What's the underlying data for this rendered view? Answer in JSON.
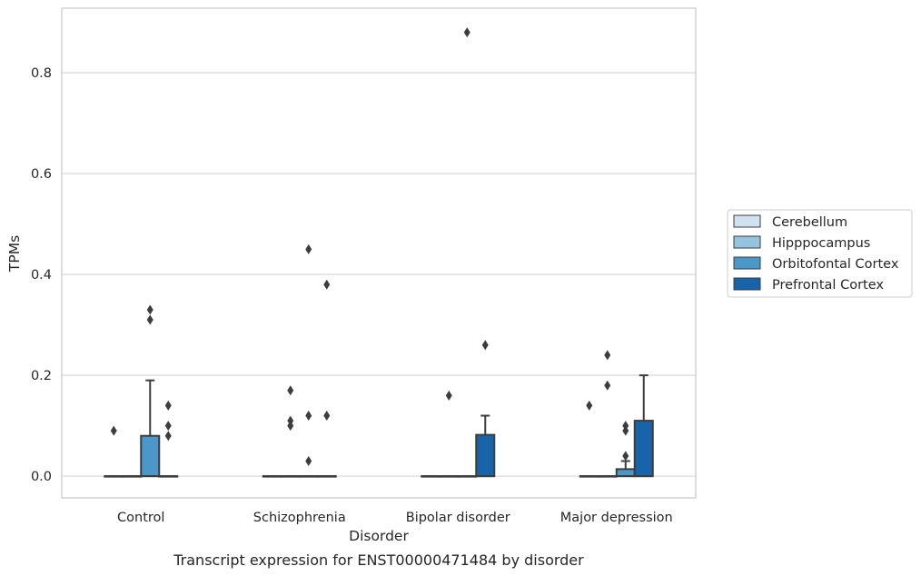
{
  "chart_data": {
    "type": "box",
    "xlabel": "Disorder",
    "ylabel": "TPMs",
    "caption": "Transcript expression for ENST00000471484 by disorder",
    "categories": [
      "Control",
      "Schizophrenia",
      "Bipolar disorder",
      "Major depression"
    ],
    "ylim": [
      -0.043,
      0.928
    ],
    "yticks": [
      0.0,
      0.2,
      0.4,
      0.6,
      0.8
    ],
    "ytick_labels": [
      "0.0",
      "0.2",
      "0.4",
      "0.6",
      "0.8"
    ],
    "grid": true,
    "legend_position": "right",
    "series": [
      {
        "name": "Cerebellum",
        "color": "#d0e1f2",
        "boxes": [
          {
            "q1": 0,
            "median": 0,
            "q3": 0,
            "whisker_low": 0,
            "whisker_high": 0,
            "outliers": [
              0.09
            ]
          },
          {
            "q1": 0,
            "median": 0,
            "q3": 0,
            "whisker_low": 0,
            "whisker_high": 0,
            "outliers": []
          },
          {
            "q1": 0,
            "median": 0,
            "q3": 0,
            "whisker_low": 0,
            "whisker_high": 0,
            "outliers": []
          },
          {
            "q1": 0,
            "median": 0,
            "q3": 0,
            "whisker_low": 0,
            "whisker_high": 0,
            "outliers": [
              0.14
            ]
          }
        ]
      },
      {
        "name": "Hipppocampus",
        "color": "#94c4df",
        "boxes": [
          {
            "q1": 0,
            "median": 0,
            "q3": 0,
            "whisker_low": 0,
            "whisker_high": 0,
            "outliers": []
          },
          {
            "q1": 0,
            "median": 0,
            "q3": 0,
            "whisker_low": 0,
            "whisker_high": 0,
            "outliers": [
              0.11,
              0.1,
              0.17
            ]
          },
          {
            "q1": 0,
            "median": 0,
            "q3": 0,
            "whisker_low": 0,
            "whisker_high": 0,
            "outliers": [
              0.16
            ]
          },
          {
            "q1": 0,
            "median": 0,
            "q3": 0,
            "whisker_low": 0,
            "whisker_high": 0,
            "outliers": [
              0.18,
              0.24
            ]
          }
        ]
      },
      {
        "name": "Orbitofontal Cortex",
        "color": "#4a98c9",
        "boxes": [
          {
            "q1": 0,
            "median": 0,
            "q3": 0.08,
            "whisker_low": 0,
            "whisker_high": 0.19,
            "outliers": [
              0.31,
              0.33
            ]
          },
          {
            "q1": 0,
            "median": 0,
            "q3": 0,
            "whisker_low": 0,
            "whisker_high": 0,
            "outliers": [
              0.12,
              0.03,
              0.45
            ]
          },
          {
            "q1": 0,
            "median": 0,
            "q3": 0,
            "whisker_low": 0,
            "whisker_high": 0,
            "outliers": [
              0.88
            ]
          },
          {
            "q1": 0,
            "median": 0,
            "q3": 0.014,
            "whisker_low": 0,
            "whisker_high": 0.03,
            "outliers": [
              0.04,
              0.09,
              0.1
            ]
          }
        ]
      },
      {
        "name": "Prefrontal Cortex",
        "color": "#1764ab",
        "boxes": [
          {
            "q1": 0,
            "median": 0,
            "q3": 0,
            "whisker_low": 0,
            "whisker_high": 0,
            "outliers": [
              0.08,
              0.1,
              0.14
            ]
          },
          {
            "q1": 0,
            "median": 0,
            "q3": 0,
            "whisker_low": 0,
            "whisker_high": 0,
            "outliers": [
              0.12,
              0.38
            ]
          },
          {
            "q1": 0,
            "median": 0,
            "q3": 0.082,
            "whisker_low": 0,
            "whisker_high": 0.12,
            "outliers": [
              0.26
            ]
          },
          {
            "q1": 0,
            "median": 0,
            "q3": 0.11,
            "whisker_low": 0,
            "whisker_high": 0.2,
            "outliers": []
          }
        ]
      }
    ]
  }
}
